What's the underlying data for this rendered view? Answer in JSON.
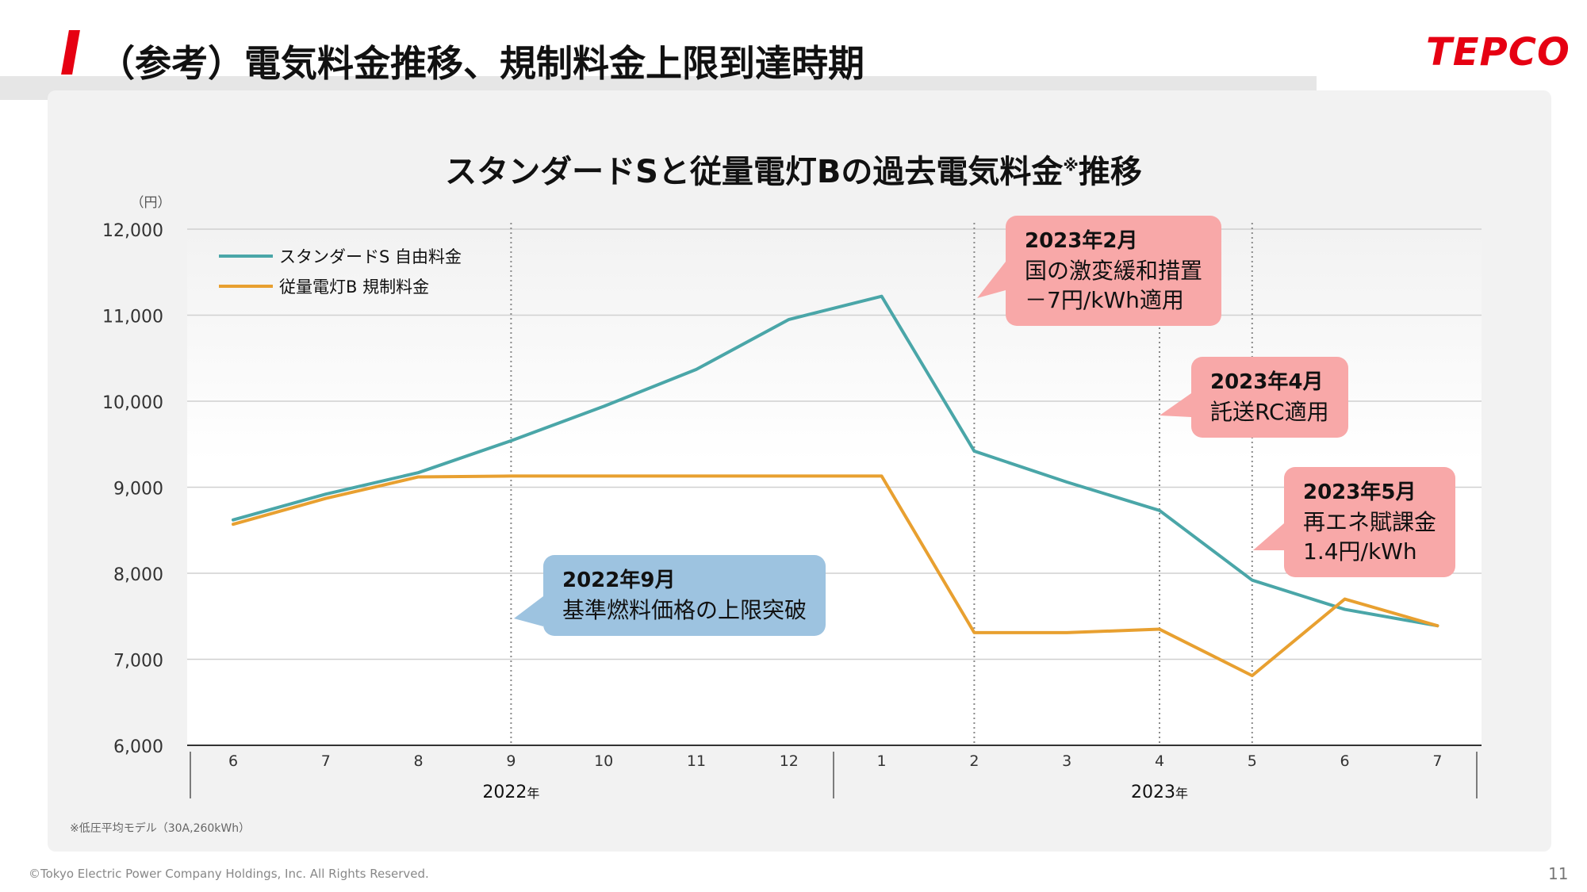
{
  "page": {
    "title": "（参考）電気料金推移、規制料金上限到達時期",
    "logo": "TEPCO",
    "footnote": "※低圧平均モデル（30A,260kWh）",
    "copyright": "©Tokyo Electric Power Company Holdings, Inc. All Rights Reserved.",
    "page_number": "11"
  },
  "colors": {
    "accent": "#e60012",
    "series_standard_s": "#4aa6a8",
    "series_juryo_b": "#e8a030",
    "callout_red": "#f8a8a8",
    "callout_blue": "#9dc3e0"
  },
  "chart_data": {
    "type": "line",
    "title": "スタンダードSと従量電灯Bの過去電気料金",
    "title_mark": "※",
    "title_suffix": "推移",
    "ylabel": "（円）",
    "ylim": [
      6000,
      12000
    ],
    "yticks": [
      "6,000",
      "7,000",
      "8,000",
      "9,000",
      "10,000",
      "11,000",
      "12,000"
    ],
    "ytick_values": [
      6000,
      7000,
      8000,
      9000,
      10000,
      11000,
      12000
    ],
    "categories": [
      "6",
      "7",
      "8",
      "9",
      "10",
      "11",
      "12",
      "1",
      "2",
      "3",
      "4",
      "5",
      "6",
      "7"
    ],
    "year_groups": [
      {
        "label": "2022",
        "suffix": "年",
        "start": 0,
        "end": 6
      },
      {
        "label": "2023",
        "suffix": "年",
        "start": 7,
        "end": 13
      }
    ],
    "legend_position": "top-left",
    "grid": true,
    "series": [
      {
        "name": "スタンダードS 自由料金",
        "color": "#4aa6a8",
        "values": [
          8620,
          8920,
          9170,
          9540,
          9940,
          10370,
          10950,
          11220,
          9420,
          9060,
          8730,
          7920,
          7580,
          7390
        ]
      },
      {
        "name": "従量電灯B 規制料金",
        "color": "#e8a030",
        "values": [
          8570,
          8870,
          9120,
          9130,
          9130,
          9130,
          9130,
          9130,
          7310,
          7310,
          7350,
          6810,
          7700,
          7390
        ]
      }
    ],
    "event_lines": [
      3,
      8,
      10,
      11
    ],
    "annotations": [
      {
        "head": "2022年9月",
        "lines": [
          "基準燃料価格の上限突破"
        ],
        "style": "blue"
      },
      {
        "head": "2023年2月",
        "lines": [
          "国の激変緩和措置",
          "－7円/kWh適用"
        ],
        "style": "red"
      },
      {
        "head": "2023年4月",
        "lines": [
          "託送RC適用"
        ],
        "style": "red"
      },
      {
        "head": "2023年5月",
        "lines": [
          "再エネ賦課金",
          "1.4円/kWh"
        ],
        "style": "red"
      }
    ]
  }
}
